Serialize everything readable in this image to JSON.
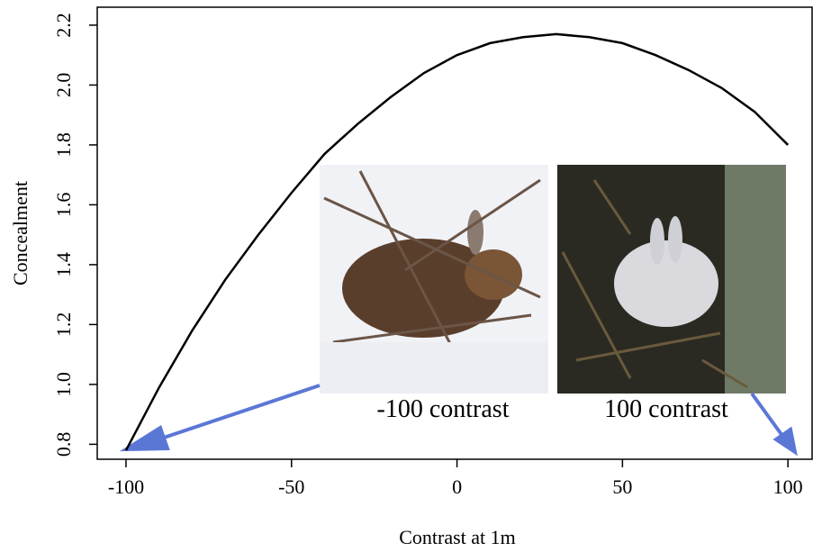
{
  "chart_data": {
    "type": "line",
    "x_label": "Contrast at 1m",
    "y_label": "Concealment",
    "x": [
      -100,
      -90,
      -80,
      -70,
      -60,
      -50,
      -40,
      -30,
      -20,
      -10,
      0,
      10,
      20,
      30,
      40,
      50,
      60,
      70,
      80,
      90,
      100
    ],
    "series": [
      {
        "color": "#000000",
        "values": [
          0.78,
          0.99,
          1.18,
          1.35,
          1.5,
          1.64,
          1.77,
          1.87,
          1.96,
          2.04,
          2.1,
          2.14,
          2.16,
          2.17,
          2.16,
          2.14,
          2.1,
          2.05,
          1.99,
          1.91,
          1.8
        ]
      }
    ],
    "xlim": [
      -108.7,
      107.3
    ],
    "xticks": [
      -100,
      -50,
      0,
      50,
      100
    ],
    "ylim": [
      0.75,
      2.26
    ],
    "yticks": [
      0.8,
      {
        "value": 1,
        "label": "1.0"
      },
      1.2,
      1.4,
      1.6,
      1.8,
      {
        "value": 2,
        "label": "2.0"
      },
      2.2
    ],
    "annotations": [
      "-100 contrast",
      "100 contrast"
    ]
  }
}
